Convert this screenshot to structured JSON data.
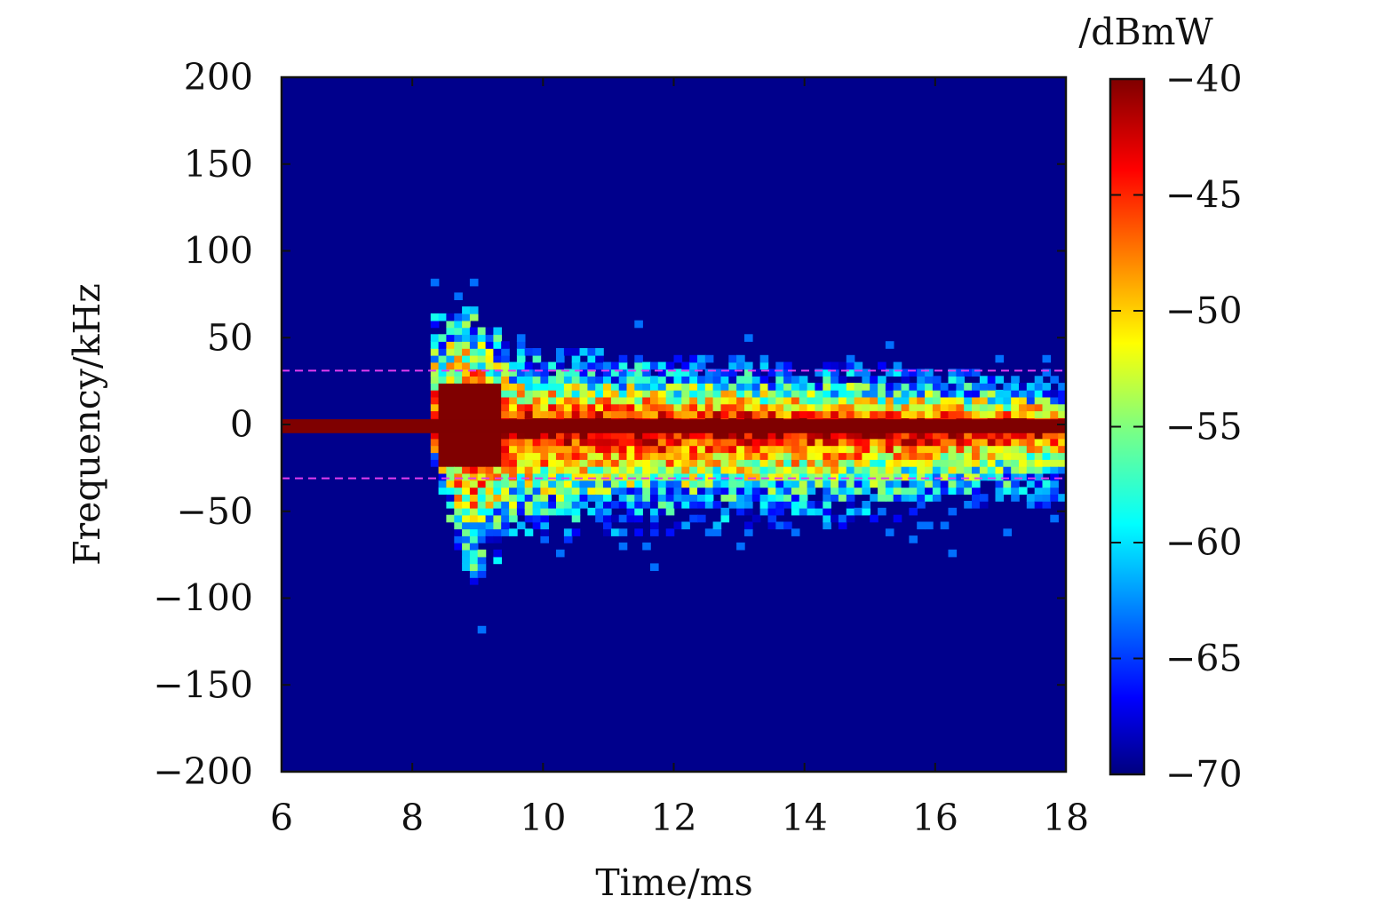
{
  "chart_data": {
    "type": "heatmap",
    "title": "",
    "xlabel": "Time/ms",
    "ylabel": "Frequency/kHz",
    "xlim": [
      6,
      18
    ],
    "ylim": [
      -200,
      200
    ],
    "xticks": [
      6,
      8,
      10,
      12,
      14,
      16,
      18
    ],
    "yticks": [
      200,
      150,
      100,
      50,
      0,
      -50,
      -100,
      -150,
      -200
    ],
    "xtick_labels": [
      "6",
      "8",
      "10",
      "12",
      "14",
      "16",
      "18"
    ],
    "ytick_labels": [
      "200",
      "150",
      "100",
      "50",
      "0",
      "−50",
      "−100",
      "−150",
      "−200"
    ],
    "colorbar": {
      "label": "/dBmW",
      "range": [
        -70,
        -40
      ],
      "colormap": "jet",
      "ticks": [
        -40,
        -45,
        -50,
        -55,
        -60,
        -65,
        -70
      ],
      "tick_labels": [
        "−40",
        "−45",
        "−50",
        "−55",
        "−60",
        "−65",
        "−70"
      ]
    },
    "background_level_dBmW": -70,
    "carrier": {
      "frequency_kHz": -1,
      "half_width_kHz": 4,
      "t_start_ms": 6,
      "t_end_ms": 18,
      "level_dBmW": -40
    },
    "burst": {
      "onset_ms": 8.2,
      "peak_ms": 8.9,
      "peak_extent_kHz": [
        -80,
        95
      ],
      "decay_end_ms": 18
    },
    "spread_profile": [
      {
        "t_ms": 8.3,
        "upper_kHz": 50,
        "lower_kHz": -20
      },
      {
        "t_ms": 8.9,
        "upper_kHz": 58,
        "lower_kHz": -75
      },
      {
        "t_ms": 9.5,
        "upper_kHz": 38,
        "lower_kHz": -55
      },
      {
        "t_ms": 11.0,
        "upper_kHz": 35,
        "lower_kHz": -50
      },
      {
        "t_ms": 13.0,
        "upper_kHz": 32,
        "lower_kHz": -48
      },
      {
        "t_ms": 15.0,
        "upper_kHz": 30,
        "lower_kHz": -45
      },
      {
        "t_ms": 18.0,
        "upper_kHz": 22,
        "lower_kHz": -35
      }
    ],
    "reference_lines": [
      {
        "orientation": "horizontal",
        "value_kHz": 31,
        "style": "dashed",
        "color": "#e23cf0"
      },
      {
        "orientation": "horizontal",
        "value_kHz": -31,
        "style": "dashed",
        "color": "#e23cf0"
      }
    ]
  }
}
